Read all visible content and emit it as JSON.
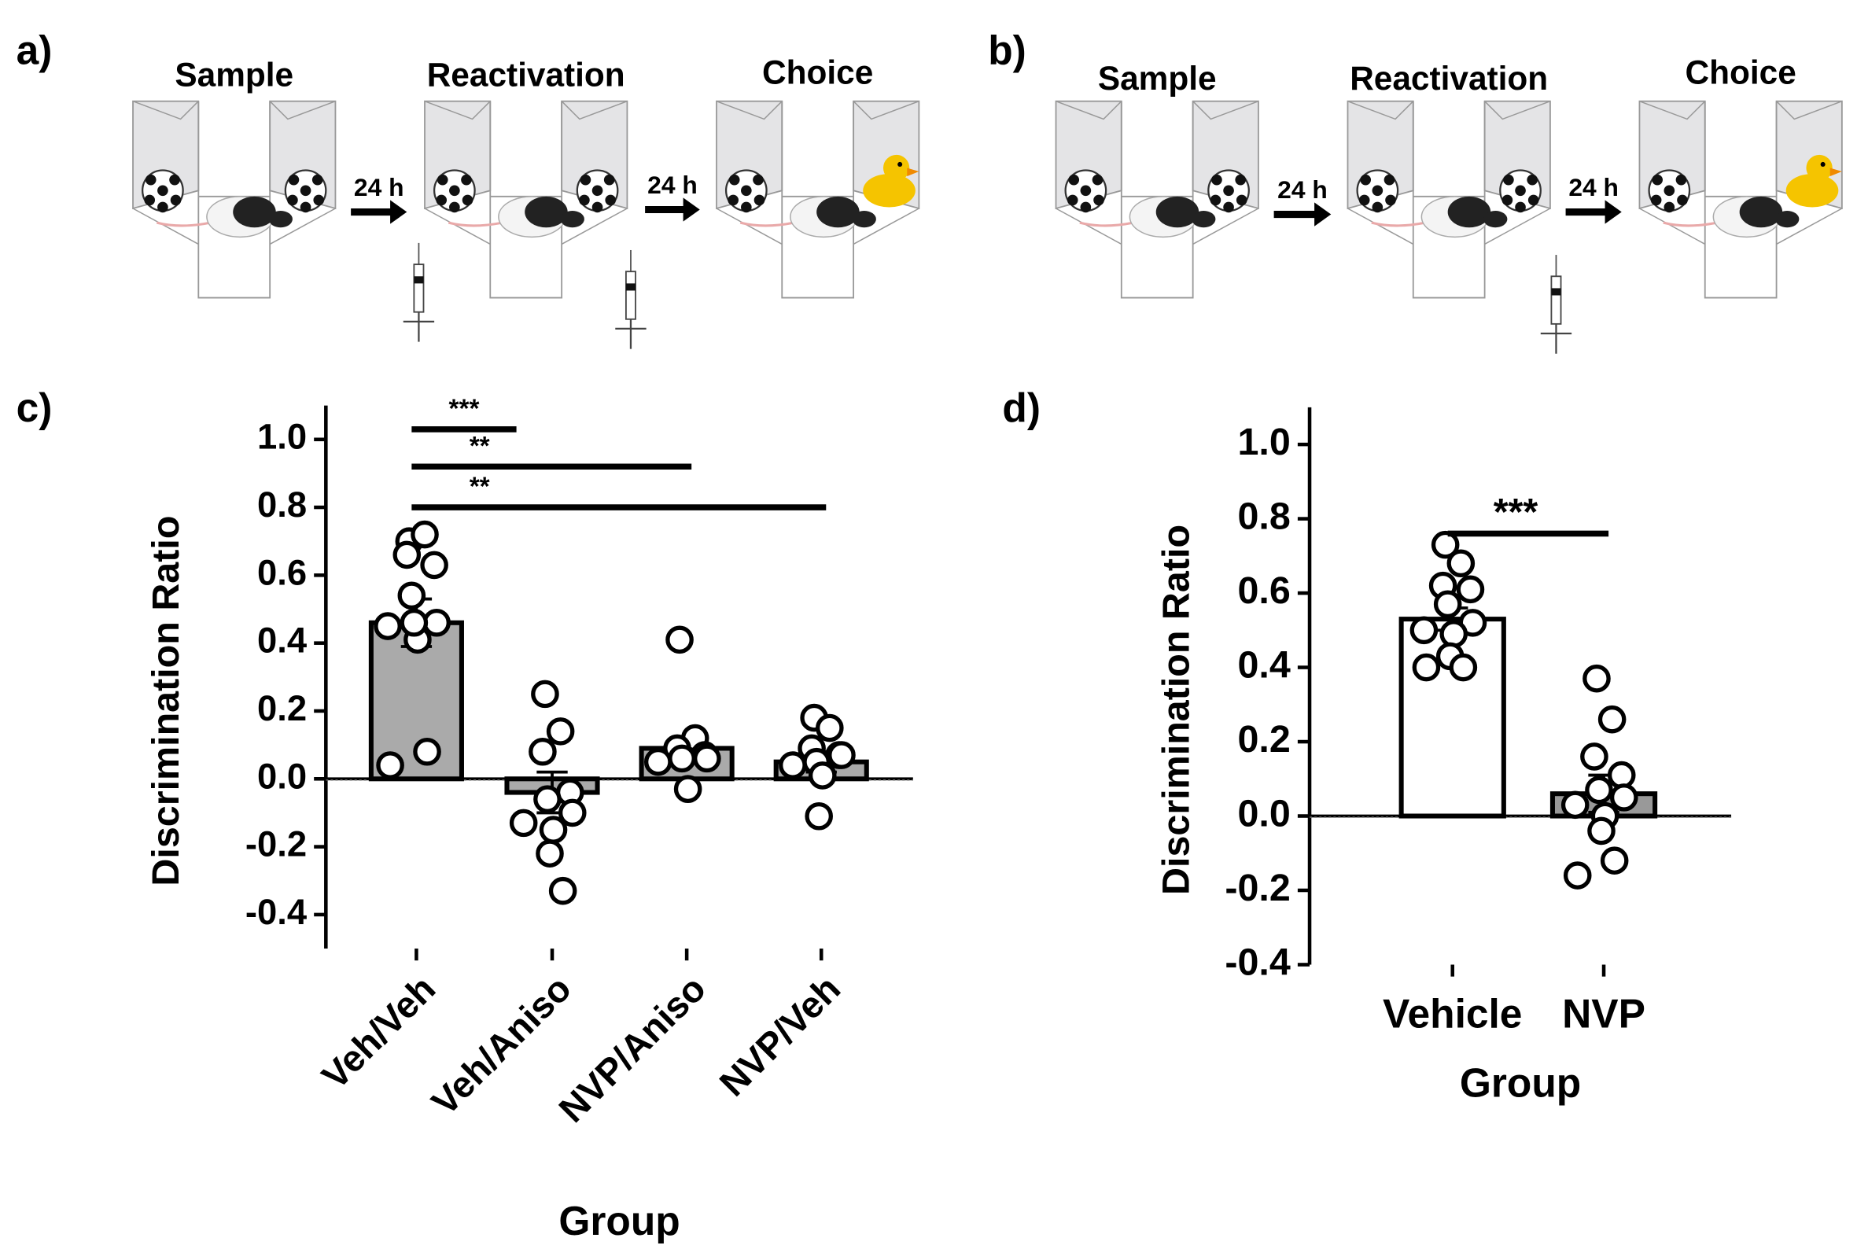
{
  "panels": [
    {
      "label": "a)",
      "stages": [
        "Sample",
        "Reactivation",
        "Choice"
      ],
      "intervals": [
        "24 h",
        "24 h"
      ]
    },
    {
      "label": "b)",
      "stages": [
        "Sample",
        "Reactivation",
        "Choice"
      ],
      "intervals": [
        "24 h",
        "24 h"
      ]
    }
  ],
  "chart_data": [
    {
      "type": "bar",
      "panel_label": "c)",
      "ylabel": "Discrimination Ratio",
      "xlabel": "Group",
      "categories": [
        "Veh/Veh",
        "Veh/Aniso",
        "NVP/Aniso",
        "NVP/Veh"
      ],
      "values": [
        0.46,
        -0.04,
        0.09,
        0.05
      ],
      "errors": [
        0.07,
        0.06,
        0.03,
        0.03
      ],
      "colors": [
        "#aaaaaa",
        "#aaaaaa",
        "#aaaaaa",
        "#aaaaaa"
      ],
      "points": [
        [
          0.7,
          0.72,
          0.66,
          0.63,
          0.54,
          0.46,
          0.45,
          0.41,
          0.46,
          0.08,
          0.04
        ],
        [
          0.25,
          0.14,
          0.08,
          -0.04,
          -0.06,
          -0.1,
          -0.13,
          -0.15,
          -0.22,
          -0.33
        ],
        [
          0.41,
          0.12,
          0.09,
          0.07,
          0.06,
          0.06,
          0.05,
          -0.03
        ],
        [
          0.18,
          0.15,
          0.09,
          0.07,
          0.05,
          0.07,
          0.04,
          0.01,
          -0.11
        ]
      ],
      "annotations": [
        {
          "label": "***",
          "from": 0,
          "to": 1,
          "y": 1.03
        },
        {
          "label": "**",
          "from": 0,
          "to": 2,
          "y": 0.92
        },
        {
          "label": "**",
          "from": 0,
          "to": 3,
          "y": 0.8
        }
      ],
      "ylim": [
        -0.5,
        1.1
      ],
      "yticks": [
        -0.4,
        -0.2,
        {
          "value": 0,
          "label": "0.0"
        },
        0.2,
        0.4,
        0.6,
        0.8,
        {
          "value": 1,
          "label": "1.0"
        }
      ]
    },
    {
      "type": "bar",
      "panel_label": "d)",
      "ylabel": "Discrimination Ratio",
      "xlabel": "Group",
      "categories": [
        "Vehicle",
        "NVP"
      ],
      "values": [
        0.53,
        0.06
      ],
      "errors": [
        0.03,
        0.05
      ],
      "colors": [
        "#ffffff",
        "#999999"
      ],
      "points": [
        [
          0.73,
          0.68,
          0.62,
          0.61,
          0.57,
          0.52,
          0.5,
          0.49,
          0.43,
          0.4,
          0.4
        ],
        [
          0.37,
          0.26,
          0.16,
          0.11,
          0.07,
          0.05,
          0.03,
          0.0,
          -0.04,
          -0.12,
          -0.16
        ]
      ],
      "annotations": [
        {
          "label": "***",
          "from": 0,
          "to": 1,
          "y": 0.76
        }
      ],
      "ylim": [
        -0.4,
        1.1
      ],
      "yticks": [
        -0.4,
        -0.2,
        {
          "value": 0,
          "label": "0.0"
        },
        0.2,
        0.4,
        0.6,
        0.8,
        {
          "value": 1,
          "label": "1.0"
        }
      ]
    }
  ]
}
